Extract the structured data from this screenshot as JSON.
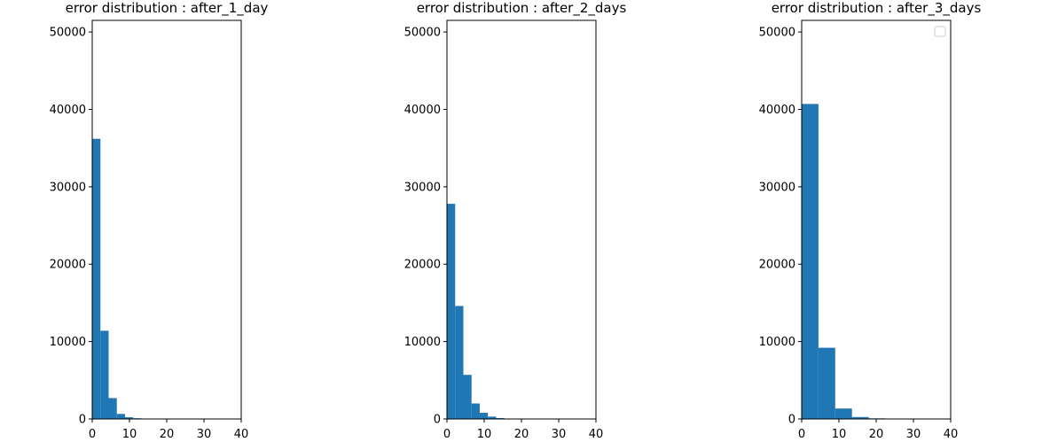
{
  "chart_data": [
    {
      "type": "bar",
      "title": "error distribution : after_1_day",
      "xlabel": "",
      "ylabel": "",
      "xlim": [
        0,
        40
      ],
      "ylim": [
        0,
        51500
      ],
      "x_ticks": [
        0,
        10,
        20,
        30,
        40
      ],
      "y_ticks": [
        0,
        10000,
        20000,
        30000,
        40000,
        50000
      ],
      "bins": [
        {
          "x0": 0.0,
          "x1": 2.2,
          "value": 36200
        },
        {
          "x0": 2.2,
          "x1": 4.4,
          "value": 11400
        },
        {
          "x0": 4.4,
          "x1": 6.6,
          "value": 2700
        },
        {
          "x0": 6.6,
          "x1": 8.8,
          "value": 650
        },
        {
          "x0": 8.8,
          "x1": 11.0,
          "value": 220
        },
        {
          "x0": 11.0,
          "x1": 13.2,
          "value": 90
        },
        {
          "x0": 13.2,
          "x1": 15.4,
          "value": 40
        },
        {
          "x0": 15.4,
          "x1": 17.6,
          "value": 15
        },
        {
          "x0": 17.6,
          "x1": 19.8,
          "value": 8
        }
      ],
      "bar_color": "#1f77b4",
      "legend": false
    },
    {
      "type": "bar",
      "title": "error distribution : after_2_days",
      "xlabel": "",
      "ylabel": "",
      "xlim": [
        0,
        40
      ],
      "ylim": [
        0,
        51500
      ],
      "x_ticks": [
        0,
        10,
        20,
        30,
        40
      ],
      "y_ticks": [
        0,
        10000,
        20000,
        30000,
        40000,
        50000
      ],
      "bins": [
        {
          "x0": 0.0,
          "x1": 2.2,
          "value": 27800
        },
        {
          "x0": 2.2,
          "x1": 4.4,
          "value": 14600
        },
        {
          "x0": 4.4,
          "x1": 6.6,
          "value": 5700
        },
        {
          "x0": 6.6,
          "x1": 8.8,
          "value": 2000
        },
        {
          "x0": 8.8,
          "x1": 11.0,
          "value": 800
        },
        {
          "x0": 11.0,
          "x1": 13.2,
          "value": 300
        },
        {
          "x0": 13.2,
          "x1": 15.4,
          "value": 120
        },
        {
          "x0": 15.4,
          "x1": 17.6,
          "value": 45
        },
        {
          "x0": 17.6,
          "x1": 19.8,
          "value": 15
        }
      ],
      "bar_color": "#1f77b4",
      "legend": false
    },
    {
      "type": "bar",
      "title": "error distribution : after_3_days",
      "xlabel": "",
      "ylabel": "",
      "xlim": [
        0,
        40
      ],
      "ylim": [
        0,
        51500
      ],
      "x_ticks": [
        0,
        10,
        20,
        30,
        40
      ],
      "y_ticks": [
        0,
        10000,
        20000,
        30000,
        40000,
        50000
      ],
      "bins": [
        {
          "x0": 0.0,
          "x1": 4.5,
          "value": 40700
        },
        {
          "x0": 4.5,
          "x1": 9.0,
          "value": 9200
        },
        {
          "x0": 9.0,
          "x1": 13.5,
          "value": 1350
        },
        {
          "x0": 13.5,
          "x1": 18.0,
          "value": 250
        },
        {
          "x0": 18.0,
          "x1": 22.5,
          "value": 80
        },
        {
          "x0": 22.5,
          "x1": 27.0,
          "value": 20
        }
      ],
      "bar_color": "#1f77b4",
      "legend": true,
      "legend_placement": "top-right",
      "legend_entries": []
    }
  ]
}
